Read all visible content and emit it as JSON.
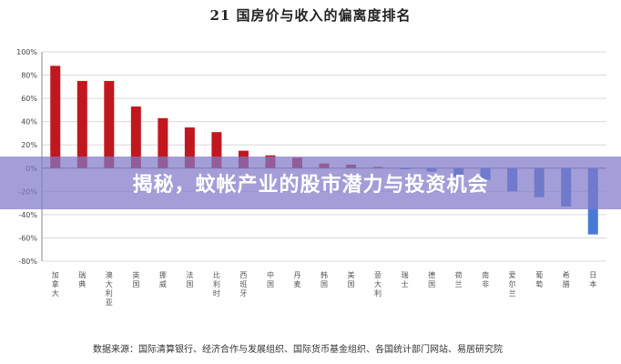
{
  "title": "21 国房价与收入的偏离度排名",
  "banner": "揭秘，蚊帐产业的股市潜力与投资机会",
  "source": "数据来源：国际清算银行、经济合作与发展组织、国际货币基金组织、各国统计部门网站、易居研究院",
  "colors": {
    "positive": "#c0181e",
    "negative": "#4a7ad6",
    "grid": "#d9d9d9"
  },
  "chart_data": {
    "type": "bar",
    "title": "21 国房价与收入的偏离度排名",
    "categories": [
      "加拿大",
      "瑞典",
      "澳大利亚",
      "英国",
      "挪威",
      "法国",
      "比利时",
      "西班牙",
      "中国",
      "丹麦",
      "韩国",
      "美国",
      "意大利",
      "瑞士",
      "德国",
      "荷兰",
      "南非",
      "爱尔兰",
      "葡萄",
      "希腊",
      "日本"
    ],
    "values": [
      88,
      75,
      75,
      53,
      43,
      35,
      31,
      15,
      11,
      9,
      4,
      3,
      1,
      -1,
      -3,
      -7,
      -10,
      -20,
      -25,
      -33,
      -57
    ],
    "ylim": [
      -80,
      100
    ],
    "yticks": [
      "100%",
      "80%",
      "60%",
      "40%",
      "20%",
      "0%",
      "-20%",
      "-40%",
      "-60%",
      "-80%"
    ],
    "grid": true
  }
}
